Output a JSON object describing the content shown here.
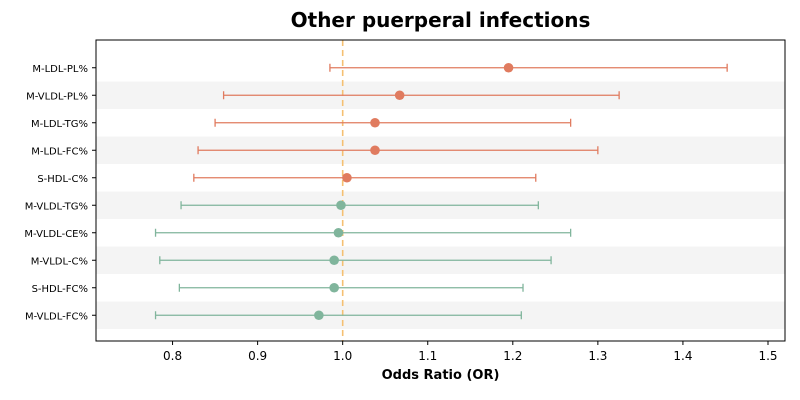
{
  "chart_data": {
    "type": "forest",
    "title": "Other puerperal infections",
    "xlabel": "Odds Ratio (OR)",
    "ylabel": "",
    "xlim": [
      0.71,
      1.52
    ],
    "x_ticks": [
      "0.8",
      "0.9",
      "1.0",
      "1.1",
      "1.2",
      "1.3",
      "1.4",
      "1.5"
    ],
    "reference_line": 1.0,
    "grid": false,
    "alternating_row_bands": true,
    "colors": {
      "positive": "#e07b5f",
      "neutral": "#80b59c",
      "reference": "#f5c072",
      "band": "#f4f4f4"
    },
    "rows": [
      {
        "label": "M-LDL-PL%",
        "or": 1.195,
        "lower": 0.985,
        "upper": 1.452,
        "group": "positive"
      },
      {
        "label": "M-VLDL-PL%",
        "or": 1.067,
        "lower": 0.86,
        "upper": 1.325,
        "group": "positive"
      },
      {
        "label": "M-LDL-TG%",
        "or": 1.038,
        "lower": 0.85,
        "upper": 1.268,
        "group": "positive"
      },
      {
        "label": "M-LDL-FC%",
        "or": 1.038,
        "lower": 0.83,
        "upper": 1.3,
        "group": "positive"
      },
      {
        "label": "S-HDL-C%",
        "or": 1.005,
        "lower": 0.825,
        "upper": 1.227,
        "group": "positive"
      },
      {
        "label": "M-VLDL-TG%",
        "or": 0.998,
        "lower": 0.81,
        "upper": 1.23,
        "group": "neutral"
      },
      {
        "label": "M-VLDL-CE%",
        "or": 0.995,
        "lower": 0.78,
        "upper": 1.268,
        "group": "neutral"
      },
      {
        "label": "M-VLDL-C%",
        "or": 0.99,
        "lower": 0.785,
        "upper": 1.245,
        "group": "neutral"
      },
      {
        "label": "S-HDL-FC%",
        "or": 0.99,
        "lower": 0.808,
        "upper": 1.212,
        "group": "neutral"
      },
      {
        "label": "M-VLDL-FC%",
        "or": 0.972,
        "lower": 0.78,
        "upper": 1.21,
        "group": "neutral"
      }
    ]
  }
}
